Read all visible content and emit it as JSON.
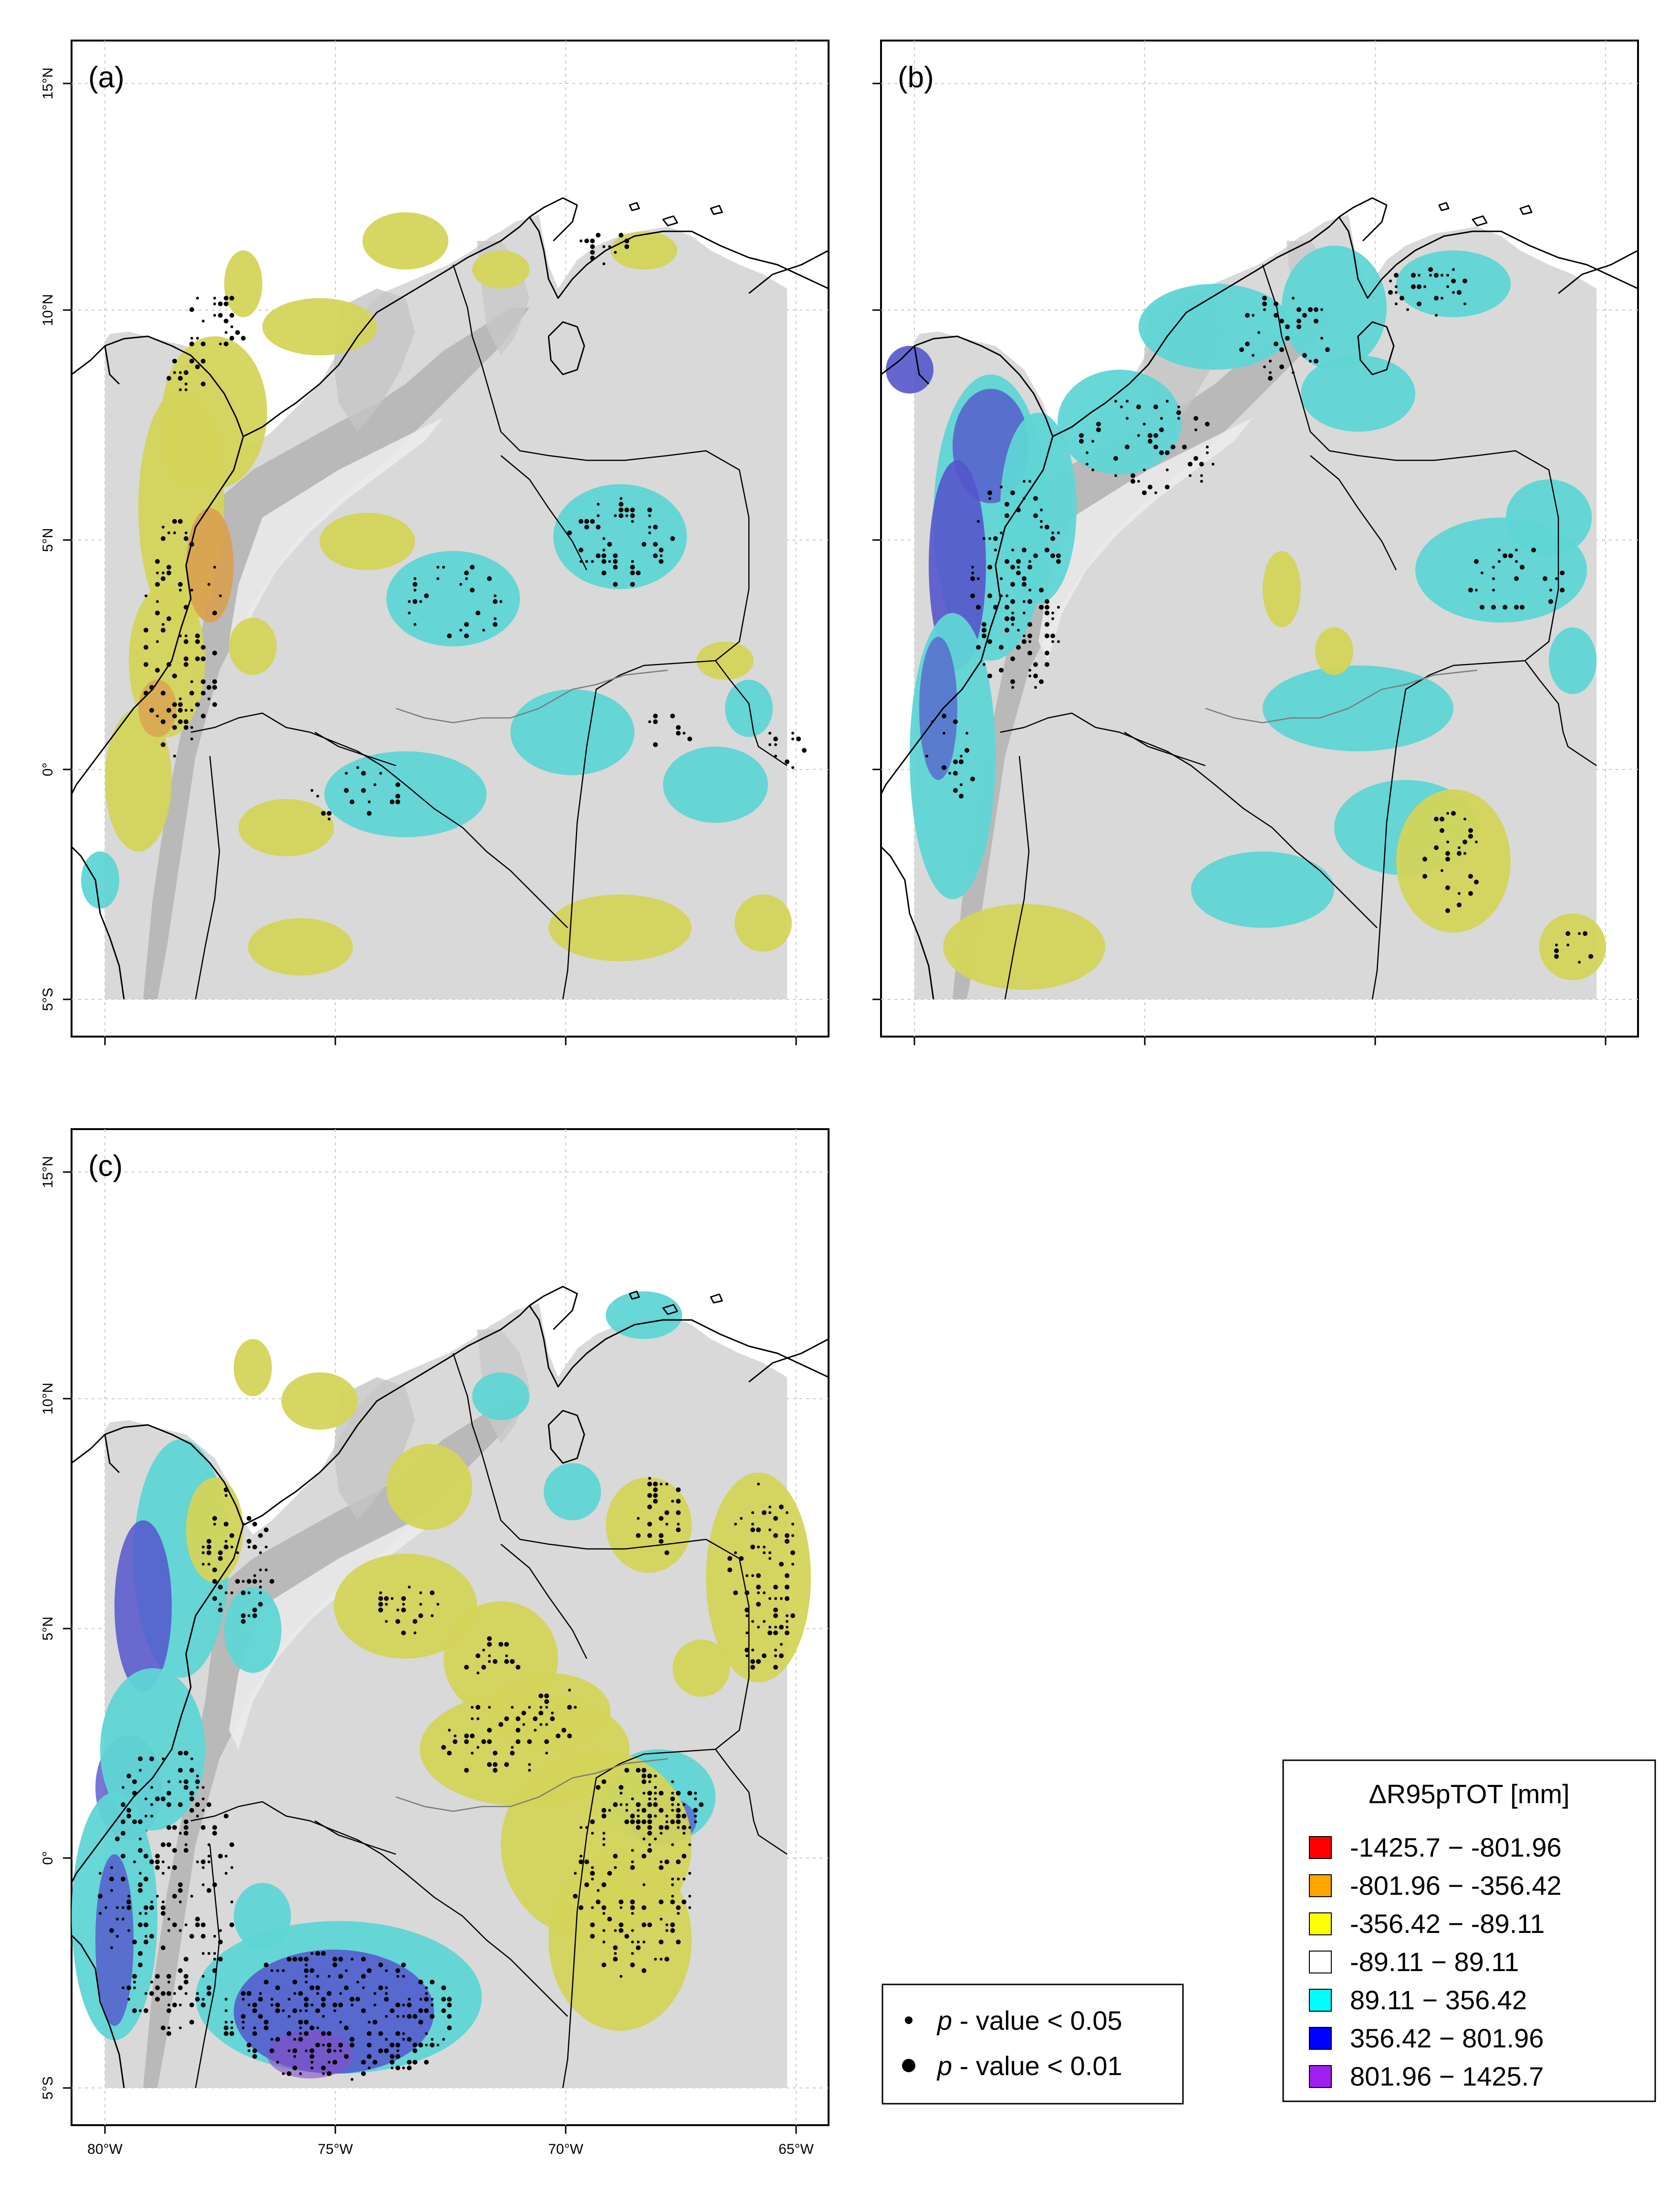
{
  "panels": [
    {
      "label": "(a)"
    },
    {
      "label": "(b)"
    },
    {
      "label": "(c)"
    }
  ],
  "axes": {
    "lat_ticks": [
      "15°N",
      "10°N",
      "5°N",
      "0°",
      "5°S"
    ],
    "lon_ticks": [
      "80°W",
      "75°W",
      "70°W",
      "65°W"
    ]
  },
  "legend": {
    "title": "ΔR95pTOT [mm]",
    "items": [
      {
        "range": "-1425.7 − -801.96",
        "color": "#ff0000"
      },
      {
        "range": "-801.96 − -356.42",
        "color": "#ffa500"
      },
      {
        "range": "-356.42 − -89.11",
        "color": "#ffff00"
      },
      {
        "range": "-89.11 − 89.11",
        "color": "#ffffff"
      },
      {
        "range": "89.11 − 356.42",
        "color": "#00ffff"
      },
      {
        "range": "356.42 − 801.96",
        "color": "#0000ff"
      },
      {
        "range": "801.96 − 1425.7",
        "color": "#a020f0"
      }
    ]
  },
  "significance": {
    "items": [
      {
        "p": "p",
        "text": " - value < 0.05",
        "size": "small"
      },
      {
        "p": "p",
        "text": " - value < 0.01",
        "size": "large"
      }
    ]
  },
  "colors": {
    "terrain": "#d9d9d9",
    "negative_light": "#d4d45a",
    "negative_mid": "#d9a050",
    "positive_light": "#5fd5d5",
    "positive_mid": "#5555cc",
    "positive_high": "#8a4cc8"
  }
}
